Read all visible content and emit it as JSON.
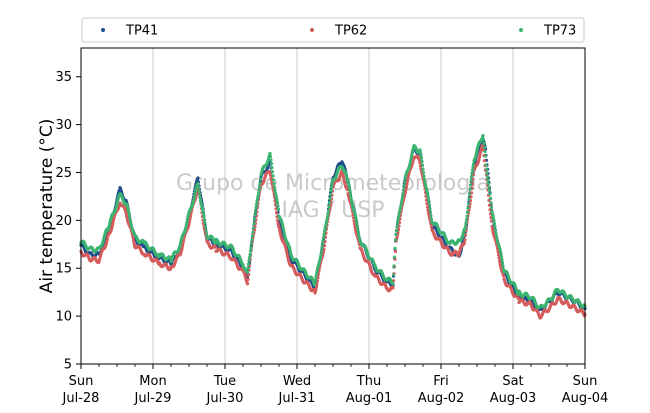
{
  "chart_data": {
    "type": "scatter",
    "ylabel": "Air temperature (°C)",
    "ylim": [
      5,
      38
    ],
    "yticks": [
      5,
      10,
      15,
      20,
      25,
      30,
      35
    ],
    "xlim": [
      "2024-07-28 00:00",
      "2024-08-04 00:00"
    ],
    "xticks": [
      {
        "day": "Sun",
        "date": "Jul-28"
      },
      {
        "day": "Mon",
        "date": "Jul-29"
      },
      {
        "day": "Tue",
        "date": "Jul-30"
      },
      {
        "day": "Wed",
        "date": "Jul-31"
      },
      {
        "day": "Thu",
        "date": "Aug-01"
      },
      {
        "day": "Fri",
        "date": "Aug-02"
      },
      {
        "day": "Sat",
        "date": "Aug-03"
      },
      {
        "day": "Sun",
        "date": "Aug-04"
      }
    ],
    "grid": "vertical",
    "legend_placement": "top",
    "watermark": [
      "Grupo de Micrometeorologia",
      "IAG / USP"
    ],
    "series": [
      {
        "name": "TP41",
        "color": "#1f4e8c",
        "points": [
          [
            "2024-07-28 00:00",
            17.4
          ],
          [
            "2024-07-28 03:00",
            16.4
          ],
          [
            "2024-07-28 06:00",
            16.4
          ],
          [
            "2024-07-28 09:00",
            18.8
          ],
          [
            "2024-07-28 13:00",
            23.2
          ],
          [
            "2024-07-28 15:00",
            22.0
          ],
          [
            "2024-07-28 18:00",
            18.0
          ],
          [
            "2024-07-28 21:00",
            17.1
          ],
          [
            "2024-07-29 02:00",
            16.1
          ],
          [
            "2024-07-29 06:00",
            15.5
          ],
          [
            "2024-07-29 09:00",
            17.0
          ],
          [
            "2024-07-29 12:00",
            20.5
          ],
          [
            "2024-07-29 15:00",
            24.5
          ],
          [
            "2024-07-29 18:00",
            18.2
          ],
          [
            "2024-07-29 21:00",
            17.5
          ],
          [
            "2024-07-30 02:00",
            16.8
          ],
          [
            "2024-07-30 06:00",
            15.1
          ],
          [
            "2024-07-30 07:30",
            13.8
          ],
          [
            "2024-07-30 09:00",
            18.0
          ],
          [
            "2024-07-30 12:00",
            24.5
          ],
          [
            "2024-07-30 15:00",
            26.0
          ],
          [
            "2024-07-30 18:00",
            20.0
          ],
          [
            "2024-07-30 22:00",
            16.0
          ],
          [
            "2024-07-31 02:00",
            14.5
          ],
          [
            "2024-07-31 06:00",
            13.0
          ],
          [
            "2024-07-31 09:00",
            18.0
          ],
          [
            "2024-07-31 12:00",
            24.5
          ],
          [
            "2024-07-31 15:00",
            26.3
          ],
          [
            "2024-07-31 17:00",
            24.0
          ],
          [
            "2024-07-31 21:00",
            18.0
          ],
          [
            "2024-08-01 02:00",
            15.0
          ],
          [
            "2024-08-01 06:00",
            13.5
          ],
          [
            "2024-08-01 08:00",
            13.3
          ],
          [
            "2024-08-01 09:00",
            18.5
          ],
          [
            "2024-08-01 12:00",
            24.0
          ],
          [
            "2024-08-01 15:00",
            27.5
          ],
          [
            "2024-08-01 17:00",
            27.0
          ],
          [
            "2024-08-01 21:00",
            19.5
          ],
          [
            "2024-08-02 03:00",
            17.0
          ],
          [
            "2024-08-02 06:00",
            16.3
          ],
          [
            "2024-08-02 08:00",
            18.5
          ],
          [
            "2024-08-02 11:00",
            26.0
          ],
          [
            "2024-08-02 14:00",
            28.5
          ],
          [
            "2024-08-02 15:00",
            27.0
          ],
          [
            "2024-08-02 17:00",
            20.5
          ],
          [
            "2024-08-02 21:00",
            14.5
          ],
          [
            "2024-08-03 02:00",
            12.0
          ],
          [
            "2024-08-03 06:00",
            11.5
          ],
          [
            "2024-08-03 09:00",
            10.5
          ],
          [
            "2024-08-03 12:00",
            11.5
          ],
          [
            "2024-08-03 15:00",
            12.5
          ],
          [
            "2024-08-03 18:00",
            12.0
          ],
          [
            "2024-08-03 21:00",
            11.5
          ],
          [
            "2024-08-04 00:00",
            10.8
          ]
        ]
      },
      {
        "name": "TP62",
        "color": "#d55c5c",
        "points": [
          [
            "2024-07-28 00:00",
            16.7
          ],
          [
            "2024-07-28 03:00",
            16.0
          ],
          [
            "2024-07-28 06:00",
            15.8
          ],
          [
            "2024-07-28 09:00",
            18.2
          ],
          [
            "2024-07-28 13:00",
            22.0
          ],
          [
            "2024-07-28 15:00",
            20.8
          ],
          [
            "2024-07-28 18:00",
            17.4
          ],
          [
            "2024-07-28 21:00",
            16.6
          ],
          [
            "2024-07-29 02:00",
            15.5
          ],
          [
            "2024-07-29 06:00",
            15.0
          ],
          [
            "2024-07-29 09:00",
            16.5
          ],
          [
            "2024-07-29 12:00",
            19.8
          ],
          [
            "2024-07-29 15:00",
            23.5
          ],
          [
            "2024-07-29 18:00",
            17.6
          ],
          [
            "2024-07-29 21:00",
            17.0
          ],
          [
            "2024-07-30 02:00",
            16.2
          ],
          [
            "2024-07-30 06:00",
            14.6
          ],
          [
            "2024-07-30 07:30",
            13.6
          ],
          [
            "2024-07-30 09:00",
            17.4
          ],
          [
            "2024-07-30 12:00",
            23.8
          ],
          [
            "2024-07-30 15:00",
            25.3
          ],
          [
            "2024-07-30 18:00",
            19.2
          ],
          [
            "2024-07-30 22:00",
            15.2
          ],
          [
            "2024-07-31 02:00",
            13.8
          ],
          [
            "2024-07-31 06:00",
            12.5
          ],
          [
            "2024-07-31 09:00",
            17.2
          ],
          [
            "2024-07-31 12:00",
            23.5
          ],
          [
            "2024-07-31 15:00",
            25.0
          ],
          [
            "2024-07-31 17:00",
            23.0
          ],
          [
            "2024-07-31 21:00",
            17.0
          ],
          [
            "2024-08-01 02:00",
            14.2
          ],
          [
            "2024-08-01 06:00",
            12.9
          ],
          [
            "2024-08-01 08:00",
            12.8
          ],
          [
            "2024-08-01 09:00",
            17.8
          ],
          [
            "2024-08-01 12:00",
            23.0
          ],
          [
            "2024-08-01 15:00",
            26.8
          ],
          [
            "2024-08-01 17:00",
            26.2
          ],
          [
            "2024-08-01 21:00",
            18.8
          ],
          [
            "2024-08-02 03:00",
            16.6
          ],
          [
            "2024-08-02 06:00",
            16.5
          ],
          [
            "2024-08-02 08:00",
            18.0
          ],
          [
            "2024-08-02 11:00",
            25.0
          ],
          [
            "2024-08-02 14:00",
            27.8
          ],
          [
            "2024-08-02 15:00",
            25.0
          ],
          [
            "2024-08-02 17:00",
            19.5
          ],
          [
            "2024-08-02 21:00",
            13.8
          ],
          [
            "2024-08-03 02:00",
            11.6
          ],
          [
            "2024-08-03 06:00",
            11.2
          ],
          [
            "2024-08-03 09:00",
            10.0
          ],
          [
            "2024-08-03 12:00",
            10.8
          ],
          [
            "2024-08-03 15:00",
            11.8
          ],
          [
            "2024-08-03 18:00",
            11.3
          ],
          [
            "2024-08-03 21:00",
            10.8
          ],
          [
            "2024-08-04 00:00",
            10.2
          ]
        ]
      },
      {
        "name": "TP73",
        "color": "#3cb371",
        "points": [
          [
            "2024-07-28 00:00",
            17.8
          ],
          [
            "2024-07-28 03:00",
            17.0
          ],
          [
            "2024-07-28 06:00",
            16.9
          ],
          [
            "2024-07-28 09:00",
            19.2
          ],
          [
            "2024-07-28 13:00",
            22.6
          ],
          [
            "2024-07-28 15:00",
            21.8
          ],
          [
            "2024-07-28 18:00",
            18.2
          ],
          [
            "2024-07-28 21:00",
            17.6
          ],
          [
            "2024-07-29 02:00",
            16.4
          ],
          [
            "2024-07-29 06:00",
            15.9
          ],
          [
            "2024-07-29 09:00",
            17.3
          ],
          [
            "2024-07-29 12:00",
            20.6
          ],
          [
            "2024-07-29 15:00",
            23.8
          ],
          [
            "2024-07-29 18:00",
            18.4
          ],
          [
            "2024-07-29 21:00",
            17.8
          ],
          [
            "2024-07-30 02:00",
            17.2
          ],
          [
            "2024-07-30 06:00",
            15.5
          ],
          [
            "2024-07-30 07:30",
            14.4
          ],
          [
            "2024-07-30 09:00",
            18.2
          ],
          [
            "2024-07-30 12:00",
            24.8
          ],
          [
            "2024-07-30 15:00",
            26.8
          ],
          [
            "2024-07-30 18:00",
            20.6
          ],
          [
            "2024-07-30 22:00",
            16.4
          ],
          [
            "2024-07-31 02:00",
            14.8
          ],
          [
            "2024-07-31 06:00",
            13.4
          ],
          [
            "2024-07-31 09:00",
            18.3
          ],
          [
            "2024-07-31 12:00",
            24.2
          ],
          [
            "2024-07-31 15:00",
            25.8
          ],
          [
            "2024-07-31 17:00",
            24.0
          ],
          [
            "2024-07-31 21:00",
            18.0
          ],
          [
            "2024-08-01 02:00",
            15.2
          ],
          [
            "2024-08-01 06:00",
            13.8
          ],
          [
            "2024-08-01 08:00",
            13.6
          ],
          [
            "2024-08-01 09:00",
            18.6
          ],
          [
            "2024-08-01 12:00",
            24.2
          ],
          [
            "2024-08-01 15:00",
            27.6
          ],
          [
            "2024-08-01 17:00",
            27.2
          ],
          [
            "2024-08-01 21:00",
            20.0
          ],
          [
            "2024-08-02 03:00",
            17.6
          ],
          [
            "2024-08-02 06:00",
            17.8
          ],
          [
            "2024-08-02 08:00",
            19.0
          ],
          [
            "2024-08-02 11:00",
            26.4
          ],
          [
            "2024-08-02 14:00",
            29.0
          ],
          [
            "2024-08-02 15:00",
            26.0
          ],
          [
            "2024-08-02 17:00",
            20.8
          ],
          [
            "2024-08-02 21:00",
            14.8
          ],
          [
            "2024-08-03 02:00",
            12.4
          ],
          [
            "2024-08-03 06:00",
            12.0
          ],
          [
            "2024-08-03 09:00",
            10.8
          ],
          [
            "2024-08-03 12:00",
            11.6
          ],
          [
            "2024-08-03 15:00",
            12.8
          ],
          [
            "2024-08-03 18:00",
            12.1
          ],
          [
            "2024-08-03 21:00",
            11.6
          ],
          [
            "2024-08-04 00:00",
            11.0
          ]
        ]
      }
    ]
  }
}
